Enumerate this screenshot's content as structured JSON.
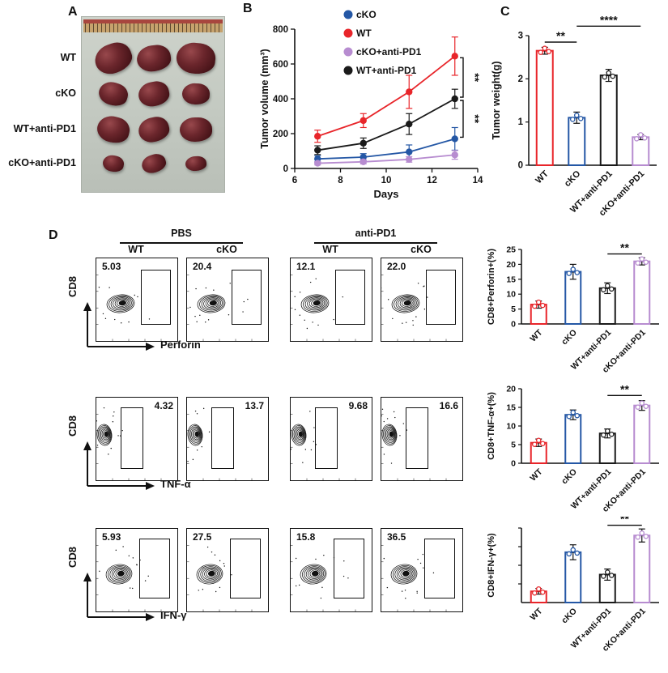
{
  "figure": {
    "panel_a": {
      "label": "A",
      "row_labels": [
        "WT",
        "cKO",
        "WT+anti-PD1",
        "cKO+anti-PD1"
      ]
    },
    "panel_b": {
      "label": "B"
    },
    "panel_c": {
      "label": "C"
    },
    "panel_d": {
      "label": "D",
      "group_headers": [
        "PBS",
        "anti-PD1"
      ],
      "column_labels": [
        "WT",
        "cKO",
        "WT",
        "cKO"
      ],
      "rows": [
        {
          "ylabel": "CD8",
          "xlabel": "Perforin",
          "values": [
            "5.03",
            "20.4",
            "12.1",
            "22.0"
          ]
        },
        {
          "ylabel": "CD8",
          "xlabel": "TNF-α",
          "values": [
            "4.32",
            "13.7",
            "9.68",
            "16.6"
          ]
        },
        {
          "ylabel": "CD8",
          "xlabel": "IFN-γ",
          "values": [
            "5.93",
            "27.5",
            "15.8",
            "36.5"
          ]
        }
      ]
    }
  },
  "colors": {
    "wt": "#e8252a",
    "cko": "#2457a5",
    "wt_anti_pd1": "#1a1a1a",
    "cko_anti_pd1": "#b78cd0"
  },
  "chart_data": [
    {
      "id": "tumor-volume",
      "type": "line",
      "xlabel": "Days",
      "ylabel": "Tumor volume (mm³)",
      "xlim": [
        6,
        14
      ],
      "ylim": [
        0,
        800
      ],
      "xticks": [
        6,
        8,
        10,
        12,
        14
      ],
      "yticks": [
        0,
        200,
        400,
        600,
        800
      ],
      "x": [
        7,
        9,
        11,
        13
      ],
      "series": [
        {
          "name": "cKO",
          "color": "#2457a5",
          "values": [
            55,
            65,
            95,
            170
          ],
          "errors": [
            18,
            20,
            40,
            65
          ]
        },
        {
          "name": "WT",
          "color": "#e8252a",
          "values": [
            185,
            275,
            440,
            645
          ],
          "errors": [
            35,
            40,
            95,
            110
          ]
        },
        {
          "name": "cKO+anti-PD1",
          "color": "#b78cd0",
          "values": [
            30,
            38,
            52,
            78
          ],
          "errors": [
            10,
            12,
            16,
            25
          ]
        },
        {
          "name": "WT+anti-PD1",
          "color": "#1a1a1a",
          "values": [
            105,
            145,
            255,
            400
          ],
          "errors": [
            25,
            30,
            60,
            55
          ]
        }
      ],
      "legend_position": "top-inside",
      "significance": [
        {
          "label": "**",
          "between": [
            "WT",
            "WT+anti-PD1"
          ]
        },
        {
          "label": "**",
          "between": [
            "WT+anti-PD1",
            "cKO"
          ]
        }
      ]
    },
    {
      "id": "tumor-weight",
      "type": "bar",
      "ylabel": "Tumor weight(g)",
      "ylim": [
        0,
        3
      ],
      "yticks": [
        0,
        1,
        2,
        3
      ],
      "categories": [
        "WT",
        "cKO",
        "WT+anti-PD1",
        "cKO+anti-PD1"
      ],
      "values": [
        2.65,
        1.1,
        2.08,
        0.65
      ],
      "errors": [
        0.08,
        0.13,
        0.14,
        0.06
      ],
      "colors": [
        "#e8252a",
        "#2457a5",
        "#1a1a1a",
        "#b78cd0"
      ],
      "significance": [
        {
          "label": "**",
          "from": 0,
          "to": 1,
          "y": 2.85
        },
        {
          "label": "****",
          "from": 1,
          "to": 3,
          "y": 3.22
        }
      ]
    },
    {
      "id": "cd8-perforin",
      "type": "bar",
      "ylabel": "CD8+Perforin+(%)",
      "ylim": [
        0,
        25
      ],
      "yticks": [
        0,
        5,
        10,
        15,
        20,
        25
      ],
      "categories": [
        "WT",
        "cKO",
        "WT+anti-PD1",
        "cKO+anti-PD1"
      ],
      "values": [
        6.5,
        17.5,
        12,
        21
      ],
      "errors": [
        1.2,
        2.5,
        1.8,
        1.2
      ],
      "colors": [
        "#e8252a",
        "#2457a5",
        "#1a1a1a",
        "#b78cd0"
      ],
      "significance": [
        {
          "label": "**",
          "from": 2,
          "to": 3,
          "y": 23.5
        }
      ]
    },
    {
      "id": "cd8-tnf",
      "type": "bar",
      "ylabel": "CD8+TNF-α+(%)",
      "ylim": [
        0,
        20
      ],
      "yticks": [
        0,
        5,
        10,
        15,
        20
      ],
      "categories": [
        "WT",
        "cKO",
        "WT+anti-PD1",
        "cKO+anti-PD1"
      ],
      "values": [
        5.5,
        13,
        8,
        15.5
      ],
      "errors": [
        1.0,
        1.3,
        1.2,
        1.3
      ],
      "colors": [
        "#e8252a",
        "#2457a5",
        "#1a1a1a",
        "#b78cd0"
      ],
      "significance": [
        {
          "label": "**",
          "from": 2,
          "to": 3,
          "y": 18.2
        }
      ]
    },
    {
      "id": "cd8-ifng",
      "type": "bar",
      "ylabel": "CD8+IFN-γ+(%)",
      "ylim": [
        0,
        40
      ],
      "yticks": [],
      "categories": [
        "WT",
        "cKO",
        "WT+anti-PD1",
        "cKO+anti-PD1"
      ],
      "values": [
        6,
        27,
        15,
        36
      ],
      "errors": [
        1.5,
        4,
        3,
        3.5
      ],
      "colors": [
        "#e8252a",
        "#2457a5",
        "#1a1a1a",
        "#b78cd0"
      ],
      "significance": [
        {
          "label": "**",
          "from": 2,
          "to": 3,
          "y": 41.5
        }
      ]
    }
  ]
}
